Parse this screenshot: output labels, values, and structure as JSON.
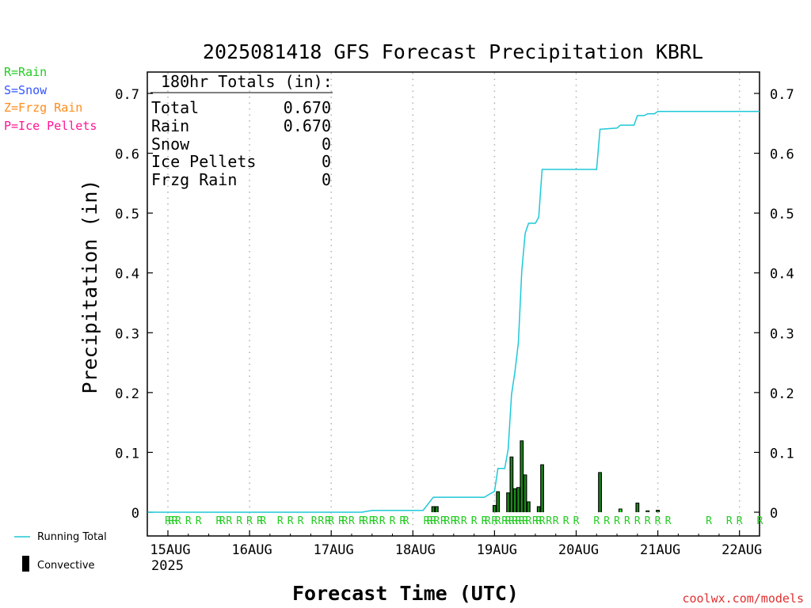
{
  "legend_types": [
    {
      "text": "R=Rain",
      "color": "#22cc22"
    },
    {
      "text": "S=Snow",
      "color": "#3355ff"
    },
    {
      "text": "Z=Frzg Rain",
      "color": "#ff8c1a"
    },
    {
      "text": "P=Ice Pellets",
      "color": "#ff1493"
    }
  ],
  "legend_lines": {
    "running_total_label": "Running Total",
    "convective_label": "Convective",
    "running_total_color": "#1ec8d8",
    "convective_color": "#000000"
  },
  "totals": {
    "header": "180hr Totals (in):",
    "rows": [
      {
        "label": "Total",
        "value": "0.670"
      },
      {
        "label": "Rain",
        "value": "0.670"
      },
      {
        "label": "Snow",
        "value": "0"
      },
      {
        "label": "Ice Pellets",
        "value": "0"
      },
      {
        "label": "Frzg Rain",
        "value": "0"
      }
    ]
  },
  "credit": "coolwx.com/models",
  "chart_data": {
    "type": "bar",
    "title": "2025081418 GFS Forecast Precipitation KBRL",
    "xlabel": "Forecast Time (UTC)",
    "ylabel": "Precipitation (in)",
    "year_label": "2025",
    "x_range_days": [
      "15AUG 00Z",
      "22AUG 06Z"
    ],
    "ylim": [
      0,
      0.73
    ],
    "y_ticks": [
      "0",
      "0.1",
      "0.2",
      "0.3",
      "0.4",
      "0.5",
      "0.6",
      "0.7"
    ],
    "x_ticks": [
      "15AUG",
      "16AUG",
      "17AUG",
      "18AUG",
      "19AUG",
      "20AUG",
      "21AUG",
      "22AUG"
    ],
    "grid": "vertical dotted at each day",
    "series": [
      {
        "name": "Running Total",
        "type": "line",
        "color": "#1ec8d8",
        "points": [
          [
            "2025-08-14 18Z",
            0.0
          ],
          [
            "2025-08-17 09Z",
            0.0
          ],
          [
            "2025-08-17 12Z",
            0.003
          ],
          [
            "2025-08-18 03Z",
            0.003
          ],
          [
            "2025-08-18 06Z",
            0.025
          ],
          [
            "2025-08-18 21Z",
            0.025
          ],
          [
            "2025-08-19 00Z",
            0.035
          ],
          [
            "2025-08-19 01Z",
            0.073
          ],
          [
            "2025-08-19 03Z",
            0.073
          ],
          [
            "2025-08-19 04Z",
            0.105
          ],
          [
            "2025-08-19 05Z",
            0.197
          ],
          [
            "2025-08-19 06Z",
            0.235
          ],
          [
            "2025-08-19 07Z",
            0.283
          ],
          [
            "2025-08-19 08Z",
            0.403
          ],
          [
            "2025-08-19 09Z",
            0.466
          ],
          [
            "2025-08-19 10Z",
            0.483
          ],
          [
            "2025-08-19 12Z",
            0.483
          ],
          [
            "2025-08-19 13Z",
            0.493
          ],
          [
            "2025-08-19 14Z",
            0.573
          ],
          [
            "2025-08-20 06Z",
            0.573
          ],
          [
            "2025-08-20 07Z",
            0.64
          ],
          [
            "2025-08-20 12Z",
            0.642
          ],
          [
            "2025-08-20 13Z",
            0.647
          ],
          [
            "2025-08-20 17Z",
            0.647
          ],
          [
            "2025-08-20 18Z",
            0.663
          ],
          [
            "2025-08-20 20Z",
            0.663
          ],
          [
            "2025-08-20 21Z",
            0.666
          ],
          [
            "2025-08-20 23Z",
            0.666
          ],
          [
            "2025-08-21 00Z",
            0.67
          ],
          [
            "2025-08-22 06Z",
            0.67
          ]
        ]
      },
      {
        "name": "Convective",
        "type": "bar",
        "color": "#000000",
        "bars": [
          {
            "t": "2025-08-18 06Z",
            "value": 0.01,
            "fill": "#1a8a1a"
          },
          {
            "t": "2025-08-18 07Z",
            "value": 0.01,
            "fill": "#1a8a1a"
          },
          {
            "t": "2025-08-19 00Z",
            "value": 0.012,
            "fill": "#1a8a1a"
          },
          {
            "t": "2025-08-19 01Z",
            "value": 0.035,
            "fill": "#1a8a1a"
          },
          {
            "t": "2025-08-19 04Z",
            "value": 0.033,
            "fill": "#1a8a1a"
          },
          {
            "t": "2025-08-19 05Z",
            "value": 0.093,
            "fill": "#1a8a1a"
          },
          {
            "t": "2025-08-19 06Z",
            "value": 0.04,
            "fill": "#1a8a1a"
          },
          {
            "t": "2025-08-19 07Z",
            "value": 0.042,
            "fill": "#1a8a1a"
          },
          {
            "t": "2025-08-19 08Z",
            "value": 0.12,
            "fill": "#1a8a1a"
          },
          {
            "t": "2025-08-19 09Z",
            "value": 0.063,
            "fill": "#1a8a1a"
          },
          {
            "t": "2025-08-19 10Z",
            "value": 0.018,
            "fill": "#1a8a1a"
          },
          {
            "t": "2025-08-19 13Z",
            "value": 0.01,
            "fill": "#1a8a1a"
          },
          {
            "t": "2025-08-19 14Z",
            "value": 0.08,
            "fill": "#1a8a1a"
          },
          {
            "t": "2025-08-20 07Z",
            "value": 0.067,
            "fill": "#1a8a1a"
          },
          {
            "t": "2025-08-20 13Z",
            "value": 0.006,
            "fill": "#22ee22"
          },
          {
            "t": "2025-08-20 18Z",
            "value": 0.016,
            "fill": "#1a8a1a"
          },
          {
            "t": "2025-08-20 21Z",
            "value": 0.003,
            "fill": "#1a8a1a"
          },
          {
            "t": "2025-08-21 00Z",
            "value": 0.004,
            "fill": "#1a8a1a"
          }
        ]
      }
    ],
    "precip_type_markers": [
      "2025-08-15 00Z",
      "2025-08-15 01Z",
      "2025-08-15 02Z",
      "2025-08-15 03Z",
      "2025-08-15 06Z",
      "2025-08-15 09Z",
      "2025-08-15 15Z",
      "2025-08-15 16Z",
      "2025-08-15 18Z",
      "2025-08-15 21Z",
      "2025-08-16 00Z",
      "2025-08-16 03Z",
      "2025-08-16 04Z",
      "2025-08-16 09Z",
      "2025-08-16 12Z",
      "2025-08-16 15Z",
      "2025-08-16 19Z",
      "2025-08-16 21Z",
      "2025-08-16 23Z",
      "2025-08-17 00Z",
      "2025-08-17 03Z",
      "2025-08-17 04Z",
      "2025-08-17 06Z",
      "2025-08-17 09Z",
      "2025-08-17 10Z",
      "2025-08-17 12Z",
      "2025-08-17 13Z",
      "2025-08-17 15Z",
      "2025-08-17 18Z",
      "2025-08-17 21Z",
      "2025-08-17 22Z",
      "2025-08-18 04Z",
      "2025-08-18 05Z",
      "2025-08-18 06Z",
      "2025-08-18 07Z",
      "2025-08-18 09Z",
      "2025-08-18 10Z",
      "2025-08-18 12Z",
      "2025-08-18 13Z",
      "2025-08-18 15Z",
      "2025-08-18 18Z",
      "2025-08-18 21Z",
      "2025-08-18 22Z",
      "2025-08-19 00Z",
      "2025-08-19 01Z",
      "2025-08-19 03Z",
      "2025-08-19 04Z",
      "2025-08-19 05Z",
      "2025-08-19 06Z",
      "2025-08-19 07Z",
      "2025-08-19 08Z",
      "2025-08-19 09Z",
      "2025-08-19 10Z",
      "2025-08-19 12Z",
      "2025-08-19 13Z",
      "2025-08-19 14Z",
      "2025-08-19 16Z",
      "2025-08-19 18Z",
      "2025-08-19 21Z",
      "2025-08-20 00Z",
      "2025-08-20 06Z",
      "2025-08-20 09Z",
      "2025-08-20 12Z",
      "2025-08-20 15Z",
      "2025-08-20 18Z",
      "2025-08-20 21Z",
      "2025-08-21 00Z",
      "2025-08-21 03Z",
      "2025-08-21 15Z",
      "2025-08-21 21Z",
      "2025-08-22 00Z",
      "2025-08-22 06Z"
    ],
    "precip_type_letter": "R",
    "precip_type_color": "#22cc22"
  }
}
